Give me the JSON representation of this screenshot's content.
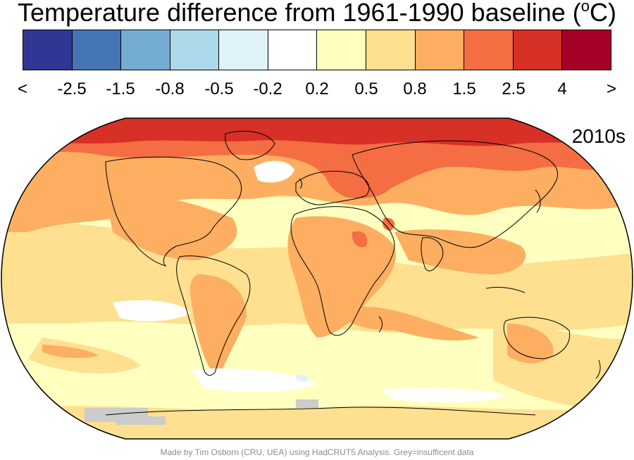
{
  "title": {
    "text": "Temperature difference from 1961-1990 baseline (",
    "degree": "o",
    "unit": "C)"
  },
  "legend": {
    "colors": [
      "#313695",
      "#4575b4",
      "#74add1",
      "#abd9e9",
      "#e0f3f8",
      "#ffffff",
      "#ffffbf",
      "#fee090",
      "#fdae61",
      "#f46d43",
      "#d73027",
      "#a50026"
    ],
    "ticks": [
      "<",
      "-2.5",
      "-1.5",
      "-0.8",
      "-0.5",
      "-0.2",
      "0.2",
      "0.5",
      "0.8",
      "1.5",
      "2.5",
      "4",
      ">"
    ]
  },
  "map": {
    "period": "2010s",
    "grey_color": "#cccccc"
  },
  "credit": "Made by Tim Osborn (CRU, UEA) using HadCRUT5 Analysis. Grey=insufficent data"
}
